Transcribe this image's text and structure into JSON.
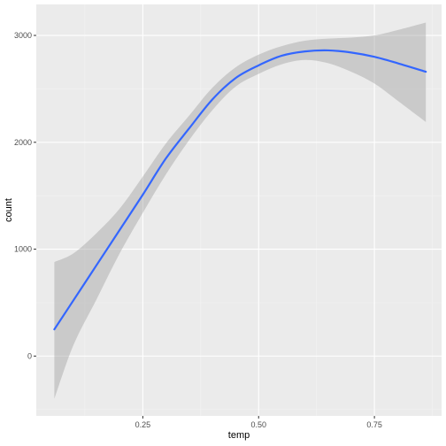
{
  "chart_data": {
    "type": "line",
    "title": "",
    "xlabel": "temp",
    "ylabel": "count",
    "xlim": [
      0.02,
      0.895
    ],
    "ylim": [
      -560,
      3290
    ],
    "x_ticks": [
      0.25,
      0.5,
      0.75
    ],
    "x_tick_labels": [
      "0.25",
      "0.50",
      "0.75"
    ],
    "y_ticks": [
      0,
      1000,
      2000,
      3000
    ],
    "y_tick_labels": [
      "0",
      "1000",
      "2000",
      "3000"
    ],
    "grid": true,
    "legend": "none",
    "series": [
      {
        "kind": "smooth",
        "x": [
          0.059,
          0.1,
          0.15,
          0.2,
          0.25,
          0.3,
          0.35,
          0.4,
          0.45,
          0.5,
          0.55,
          0.6,
          0.65,
          0.7,
          0.75,
          0.8,
          0.861
        ],
        "y": [
          250,
          520,
          850,
          1180,
          1510,
          1850,
          2130,
          2400,
          2600,
          2720,
          2810,
          2850,
          2860,
          2840,
          2800,
          2740,
          2660
        ],
        "lower": [
          -400,
          100,
          530,
          960,
          1340,
          1700,
          2020,
          2300,
          2520,
          2640,
          2730,
          2770,
          2740,
          2660,
          2550,
          2390,
          2190
        ],
        "upper": [
          880,
          960,
          1150,
          1380,
          1680,
          1990,
          2250,
          2510,
          2700,
          2820,
          2900,
          2950,
          2970,
          2980,
          3000,
          3050,
          3120
        ]
      }
    ],
    "colors": {
      "line": "#3366FF",
      "ribbon": "#999999",
      "panel": "#EBEBEB",
      "grid_major": "#FFFFFF",
      "grid_minor": "#F3F3F3"
    }
  }
}
